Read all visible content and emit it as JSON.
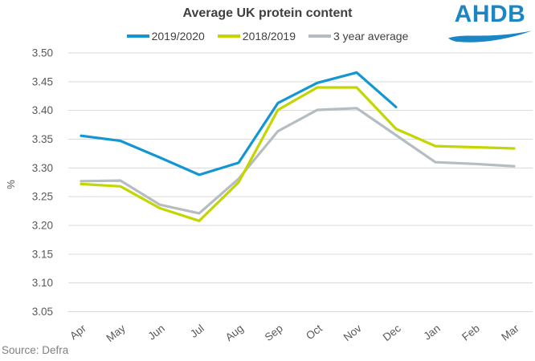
{
  "header": {
    "logo": {
      "text": "AHDB"
    }
  },
  "footer": {
    "source": "Source: Defra"
  },
  "colors": {
    "series_blue": "#1496d2",
    "series_yellow": "#c4d600",
    "series_gray": "#b5bdc1",
    "logo_blue": "#1b86c6",
    "grid": "#d9d9d9",
    "axis_text": "#595959",
    "title_text": "#3f3f3f",
    "source_text": "#808080"
  },
  "chart_data": {
    "type": "line",
    "title": "Average UK protein content",
    "xlabel": "",
    "ylabel": "%",
    "categories": [
      "Apr",
      "May",
      "Jun",
      "Jul",
      "Aug",
      "Sep",
      "Oct",
      "Nov",
      "Dec",
      "Jan",
      "Feb",
      "Mar"
    ],
    "series": [
      {
        "name": "2019/2020",
        "color": "#1496d2",
        "values": [
          3.356,
          3.347,
          3.318,
          3.288,
          3.309,
          3.413,
          3.448,
          3.466,
          3.406,
          null,
          null,
          null
        ]
      },
      {
        "name": "2018/2019",
        "color": "#c4d600",
        "values": [
          3.272,
          3.268,
          3.23,
          3.208,
          3.275,
          3.401,
          3.44,
          3.44,
          3.368,
          3.338,
          3.336,
          3.334
        ]
      },
      {
        "name": "3 year average",
        "color": "#b5bdc1",
        "values": [
          3.277,
          3.278,
          3.236,
          3.221,
          3.281,
          3.364,
          3.401,
          3.404,
          3.357,
          3.31,
          3.307,
          3.303
        ]
      }
    ],
    "ylim": [
      3.05,
      3.5
    ],
    "ytick_step": 0.05,
    "ytick_decimals": 2,
    "grid": true,
    "legend_position": "top"
  }
}
